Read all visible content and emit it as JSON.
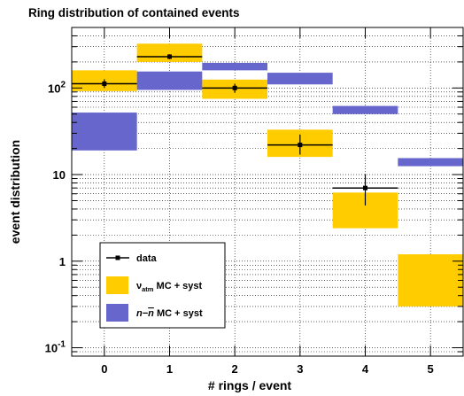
{
  "chart_data": {
    "type": "bar",
    "title": "Ring distribution of contained events",
    "xlabel": "# rings / event",
    "ylabel": "event distribution",
    "yscale": "log",
    "ylim": [
      0.08,
      500
    ],
    "xlim": [
      -0.5,
      5.5
    ],
    "grid": true,
    "legend_position": "bottom-left",
    "x_ticks": [
      "0",
      "1",
      "2",
      "3",
      "4",
      "5"
    ],
    "y_ticks": [
      {
        "value": 0.1,
        "base": "10",
        "exp": "-1"
      },
      {
        "value": 1,
        "base": "1",
        "exp": ""
      },
      {
        "value": 10,
        "base": "10",
        "exp": ""
      },
      {
        "value": 100,
        "base": "10",
        "exp": "2"
      }
    ],
    "categories": [
      0,
      1,
      2,
      3,
      4,
      5
    ],
    "series": [
      {
        "name_prefix": "ν",
        "name_sub": "atm",
        "name_suffix": " MC + syst",
        "kind": "band",
        "color": "#ffcc00",
        "values": [
          {
            "x": 0,
            "low": 92,
            "high": 160
          },
          {
            "x": 1,
            "low": 200,
            "high": 325
          },
          {
            "x": 2,
            "low": 75,
            "high": 125
          },
          {
            "x": 3,
            "low": 16,
            "high": 33
          },
          {
            "x": 4,
            "low": 2.4,
            "high": 6.2
          },
          {
            "x": 5,
            "low": 0.3,
            "high": 1.2
          }
        ]
      },
      {
        "name_prefix": "n−",
        "name_bar": "n",
        "name_suffix": " MC + syst",
        "kind": "band",
        "color": "#6666cc",
        "values": [
          {
            "x": 0,
            "low": 19,
            "high": 52
          },
          {
            "x": 1,
            "low": 95,
            "high": 155
          },
          {
            "x": 2,
            "low": 160,
            "high": 195
          },
          {
            "x": 3,
            "low": 110,
            "high": 150
          },
          {
            "x": 4,
            "low": 50,
            "high": 62
          },
          {
            "x": 5,
            "low": 12.5,
            "high": 15.5
          }
        ]
      },
      {
        "name": "data",
        "kind": "points",
        "color": "#000000",
        "values": [
          {
            "x": 0,
            "y": 112,
            "err_low": 12,
            "err_high": 14
          },
          {
            "x": 1,
            "y": 230,
            "err_low": 15,
            "err_high": 15
          },
          {
            "x": 2,
            "y": 100,
            "err_low": 12,
            "err_high": 12
          },
          {
            "x": 3,
            "y": 22,
            "err_low": 5,
            "err_high": 7
          },
          {
            "x": 4,
            "y": 7,
            "err_low": 2.6,
            "err_high": 3
          }
        ]
      }
    ]
  }
}
